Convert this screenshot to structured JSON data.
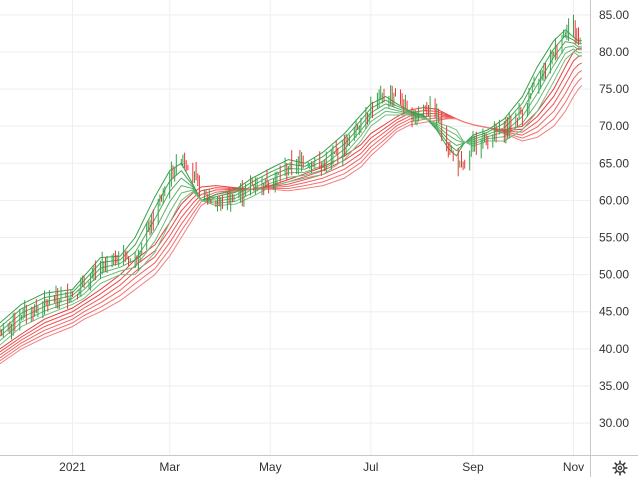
{
  "chart_data": {
    "type": "line",
    "title": "",
    "xlabel": "",
    "ylabel": "",
    "x_range": [
      "2020-11-18",
      "2021-11-11"
    ],
    "ylim": [
      25.7,
      87.0
    ],
    "y_axis_position": "right",
    "y_ticks": [
      30,
      35,
      40,
      45,
      50,
      55,
      60,
      65,
      70,
      75,
      80,
      85
    ],
    "y_tick_labels": [
      "30.00",
      "35.00",
      "40.00",
      "45.00",
      "50.00",
      "55.00",
      "60.00",
      "65.00",
      "70.00",
      "75.00",
      "80.00",
      "85.00"
    ],
    "x_ticks": [
      {
        "date": "2021-01-01",
        "label": "2021"
      },
      {
        "date": "2021-03-01",
        "label": "Mar"
      },
      {
        "date": "2021-05-01",
        "label": "May"
      },
      {
        "date": "2021-07-01",
        "label": "Jul"
      },
      {
        "date": "2021-09-01",
        "label": "Sep"
      },
      {
        "date": "2021-11-01",
        "label": "Nov"
      }
    ],
    "grid": true,
    "price_series": {
      "x": [
        "2020-11-18",
        "2020-12-01",
        "2020-12-15",
        "2021-01-01",
        "2021-01-08",
        "2021-01-18",
        "2021-01-30",
        "2021-02-08",
        "2021-02-20",
        "2021-03-01",
        "2021-03-08",
        "2021-03-15",
        "2021-03-20",
        "2021-03-29",
        "2021-04-10",
        "2021-04-20",
        "2021-05-01",
        "2021-05-12",
        "2021-05-22",
        "2021-06-02",
        "2021-06-15",
        "2021-06-25",
        "2021-07-01",
        "2021-07-10",
        "2021-07-17",
        "2021-07-25",
        "2021-08-02",
        "2021-08-10",
        "2021-08-17",
        "2021-08-22",
        "2021-08-26",
        "2021-09-01",
        "2021-09-10",
        "2021-09-20",
        "2021-10-01",
        "2021-10-10",
        "2021-10-20",
        "2021-10-27",
        "2021-11-01",
        "2021-11-04",
        "2021-11-06"
      ],
      "y": [
        42.0,
        44.5,
        46.0,
        47.5,
        48.5,
        51.0,
        52.5,
        52.0,
        58.0,
        63.0,
        66.0,
        64.0,
        61.0,
        59.5,
        60.5,
        62.0,
        62.5,
        64.5,
        65.5,
        64.5,
        67.5,
        70.5,
        72.5,
        74.0,
        74.5,
        71.0,
        72.5,
        71.5,
        67.0,
        65.5,
        64.0,
        67.5,
        68.5,
        69.5,
        72.0,
        76.0,
        80.0,
        83.0,
        83.5,
        81.5,
        82.0
      ]
    },
    "series": [
      {
        "group": "short",
        "color": "#36a148",
        "values": [
          43.5,
          46.0,
          47.5,
          48.0,
          49.8,
          52.3,
          52.5,
          55.0,
          60.5,
          64.0,
          65.0,
          62.2,
          60.0,
          60.8,
          61.5,
          63.0,
          64.3,
          65.5,
          65.0,
          66.5,
          69.0,
          71.5,
          73.0,
          74.0,
          73.0,
          72.0,
          71.5,
          69.5,
          67.0,
          66.0,
          67.5,
          68.8,
          69.5,
          71.0,
          74.0,
          78.0,
          81.5,
          83.0,
          82.0,
          81.5,
          81.5
        ]
      },
      {
        "group": "short",
        "color": "#43a753",
        "values": [
          42.9,
          45.4,
          46.9,
          47.6,
          49.2,
          51.6,
          52.0,
          54.0,
          59.0,
          62.6,
          64.0,
          62.0,
          60.0,
          60.5,
          61.1,
          62.5,
          63.8,
          64.9,
          64.6,
          65.9,
          68.3,
          70.8,
          72.4,
          73.5,
          72.7,
          71.9,
          71.4,
          69.7,
          67.6,
          66.7,
          67.6,
          68.5,
          69.2,
          70.4,
          73.1,
          76.8,
          80.4,
          82.2,
          81.6,
          81.1,
          81.1
        ]
      },
      {
        "group": "short",
        "color": "#50ad5f",
        "values": [
          42.3,
          44.8,
          46.3,
          47.2,
          48.6,
          50.9,
          51.5,
          53.0,
          57.5,
          61.2,
          63.0,
          61.8,
          60.0,
          60.2,
          60.7,
          62.0,
          63.3,
          64.3,
          64.2,
          65.3,
          67.6,
          70.1,
          71.8,
          73.0,
          72.4,
          71.8,
          71.3,
          69.9,
          68.2,
          67.4,
          67.7,
          68.2,
          68.9,
          69.8,
          72.2,
          75.6,
          79.3,
          81.4,
          81.2,
          80.7,
          80.7
        ]
      },
      {
        "group": "short",
        "color": "#5db36b",
        "values": [
          41.7,
          44.2,
          45.7,
          46.8,
          48.0,
          50.2,
          51.0,
          52.0,
          56.0,
          59.8,
          62.0,
          61.6,
          60.0,
          59.9,
          60.3,
          61.5,
          62.8,
          63.7,
          63.8,
          64.7,
          66.9,
          69.4,
          71.2,
          72.5,
          72.1,
          71.7,
          71.2,
          70.1,
          68.8,
          68.1,
          67.8,
          67.9,
          68.6,
          69.2,
          71.3,
          74.4,
          78.2,
          80.6,
          80.8,
          80.3,
          80.3
        ]
      },
      {
        "group": "short",
        "color": "#6ab977",
        "values": [
          41.1,
          43.6,
          45.1,
          46.4,
          47.4,
          49.5,
          50.5,
          51.0,
          54.5,
          58.4,
          61.0,
          61.4,
          60.0,
          59.6,
          59.9,
          61.0,
          62.3,
          63.1,
          63.4,
          64.1,
          66.2,
          68.7,
          70.6,
          72.0,
          71.8,
          71.6,
          71.1,
          70.3,
          69.4,
          68.8,
          67.9,
          67.6,
          68.3,
          68.6,
          70.4,
          73.2,
          77.1,
          79.8,
          80.4,
          79.9,
          79.9
        ]
      },
      {
        "group": "short",
        "color": "#77bf83",
        "values": [
          40.5,
          43.0,
          44.5,
          46.0,
          46.8,
          48.8,
          50.0,
          50.0,
          53.0,
          57.0,
          60.0,
          61.2,
          60.0,
          59.3,
          59.5,
          60.5,
          61.8,
          62.5,
          63.0,
          63.5,
          65.5,
          68.0,
          70.0,
          71.5,
          71.5,
          71.5,
          71.0,
          70.5,
          70.0,
          69.5,
          68.0,
          67.3,
          68.0,
          68.0,
          69.5,
          72.0,
          76.0,
          79.0,
          80.0,
          79.5,
          79.5
        ]
      },
      {
        "group": "long",
        "color": "#e83a3a",
        "values": [
          40.0,
          42.0,
          44.0,
          45.5,
          46.5,
          48.0,
          50.0,
          52.0,
          54.0,
          57.0,
          59.5,
          61.0,
          61.8,
          62.0,
          61.7,
          61.5,
          62.0,
          62.8,
          63.6,
          64.5,
          66.0,
          67.5,
          69.0,
          70.3,
          71.3,
          72.2,
          72.5,
          72.3,
          71.5,
          71.0,
          70.6,
          70.2,
          69.8,
          69.5,
          70.0,
          72.0,
          75.0,
          78.0,
          80.0,
          80.5,
          80.5
        ]
      },
      {
        "group": "long",
        "color": "#eb4848",
        "values": [
          39.6,
          41.6,
          43.5,
          45.0,
          46.0,
          47.4,
          49.3,
          51.2,
          53.2,
          56.1,
          58.6,
          60.3,
          61.3,
          61.7,
          61.6,
          61.5,
          61.9,
          62.5,
          63.2,
          64.0,
          65.4,
          66.9,
          68.4,
          69.8,
          70.9,
          71.8,
          72.1,
          72.0,
          71.4,
          71.0,
          70.6,
          70.2,
          69.8,
          69.4,
          69.6,
          71.3,
          74.0,
          76.8,
          78.8,
          79.4,
          79.5
        ]
      },
      {
        "group": "long",
        "color": "#ed5656",
        "values": [
          39.2,
          41.2,
          43.0,
          44.5,
          45.5,
          46.8,
          48.6,
          50.4,
          52.4,
          55.2,
          57.7,
          59.6,
          60.8,
          61.4,
          61.5,
          61.5,
          61.8,
          62.2,
          62.8,
          63.5,
          64.8,
          66.3,
          67.8,
          69.3,
          70.5,
          71.4,
          71.7,
          71.7,
          71.3,
          71.0,
          70.6,
          70.2,
          69.8,
          69.3,
          69.2,
          70.6,
          73.0,
          75.6,
          77.6,
          78.3,
          78.5
        ]
      },
      {
        "group": "long",
        "color": "#ef6363",
        "values": [
          38.8,
          40.8,
          42.5,
          44.0,
          45.0,
          46.2,
          47.9,
          49.6,
          51.6,
          54.3,
          56.8,
          58.9,
          60.3,
          61.1,
          61.4,
          61.5,
          61.7,
          61.9,
          62.4,
          63.0,
          64.2,
          65.7,
          67.2,
          68.8,
          70.1,
          71.0,
          71.3,
          71.4,
          71.2,
          71.0,
          70.6,
          70.2,
          69.8,
          69.2,
          68.8,
          69.9,
          72.0,
          74.4,
          76.4,
          77.2,
          77.5
        ]
      },
      {
        "group": "long",
        "color": "#f17070",
        "values": [
          38.4,
          40.4,
          42.0,
          43.5,
          44.5,
          45.6,
          47.2,
          48.8,
          50.8,
          53.4,
          55.9,
          58.2,
          59.8,
          60.8,
          61.3,
          61.5,
          61.6,
          61.6,
          62.0,
          62.5,
          63.6,
          65.1,
          66.6,
          68.3,
          69.7,
          70.6,
          70.9,
          71.1,
          71.1,
          71.0,
          70.6,
          70.2,
          69.8,
          69.1,
          68.4,
          69.2,
          71.0,
          73.2,
          75.2,
          76.1,
          76.5
        ]
      },
      {
        "group": "long",
        "color": "#f37d7d",
        "values": [
          38.0,
          40.0,
          41.5,
          43.0,
          44.0,
          45.0,
          46.5,
          48.0,
          50.0,
          52.5,
          55.0,
          57.5,
          59.3,
          60.5,
          61.2,
          61.5,
          61.5,
          61.3,
          61.6,
          62.0,
          63.0,
          64.5,
          66.0,
          67.8,
          69.3,
          70.2,
          70.5,
          70.8,
          71.0,
          71.0,
          70.6,
          70.2,
          69.8,
          69.0,
          68.0,
          68.5,
          70.0,
          72.0,
          74.0,
          75.0,
          75.5
        ]
      }
    ]
  },
  "icons": {
    "settings": "gear-icon"
  },
  "colors": {
    "up": "#36a148",
    "down": "#e83a3a",
    "grid": "#eeeeee",
    "text": "#333333",
    "axis_line": "#c8c8c8"
  }
}
